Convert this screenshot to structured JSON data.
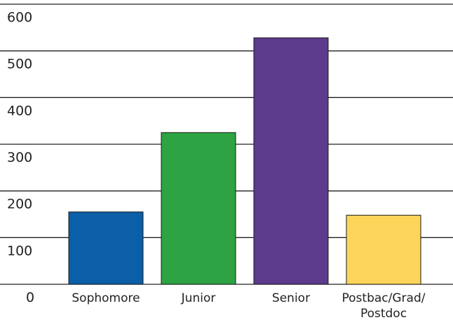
{
  "chart_data": {
    "type": "bar",
    "title": "",
    "xlabel": "",
    "ylabel": "",
    "categories": [
      "Sophomore",
      "Junior",
      "Senior",
      "Postbac/Grad/Postdoc"
    ],
    "category_lines": [
      [
        "Sophomore"
      ],
      [
        "Junior"
      ],
      [
        "Senior"
      ],
      [
        "Postbac/Grad/",
        "Postdoc"
      ]
    ],
    "values": [
      155,
      325,
      528,
      148
    ],
    "bar_colors": [
      "#0b5ea8",
      "#2ea343",
      "#5c3a8c",
      "#fdd55a"
    ],
    "yticks": [
      0,
      100,
      200,
      300,
      400,
      500,
      600
    ],
    "ylim": [
      0,
      600
    ],
    "grid": true,
    "legend": "none"
  }
}
